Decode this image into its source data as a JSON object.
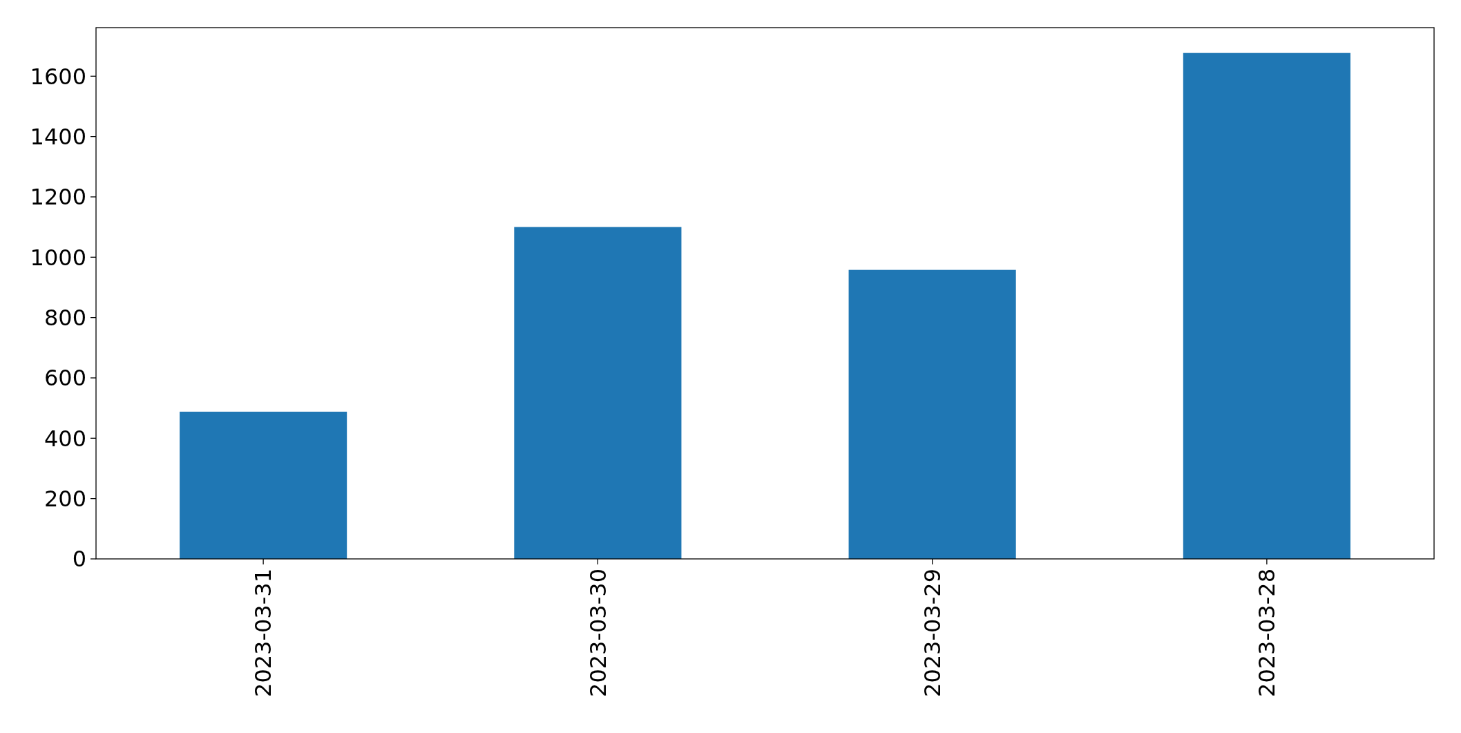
{
  "chart_data": {
    "type": "bar",
    "categories": [
      "2023-03-31",
      "2023-03-30",
      "2023-03-29",
      "2023-03-28"
    ],
    "values": [
      488,
      1100,
      958,
      1677
    ],
    "color": "#1f77b4",
    "ylim": [
      0,
      1761
    ],
    "yticks": [
      0,
      200,
      400,
      600,
      800,
      1000,
      1200,
      1400,
      1600
    ],
    "grid": false
  }
}
